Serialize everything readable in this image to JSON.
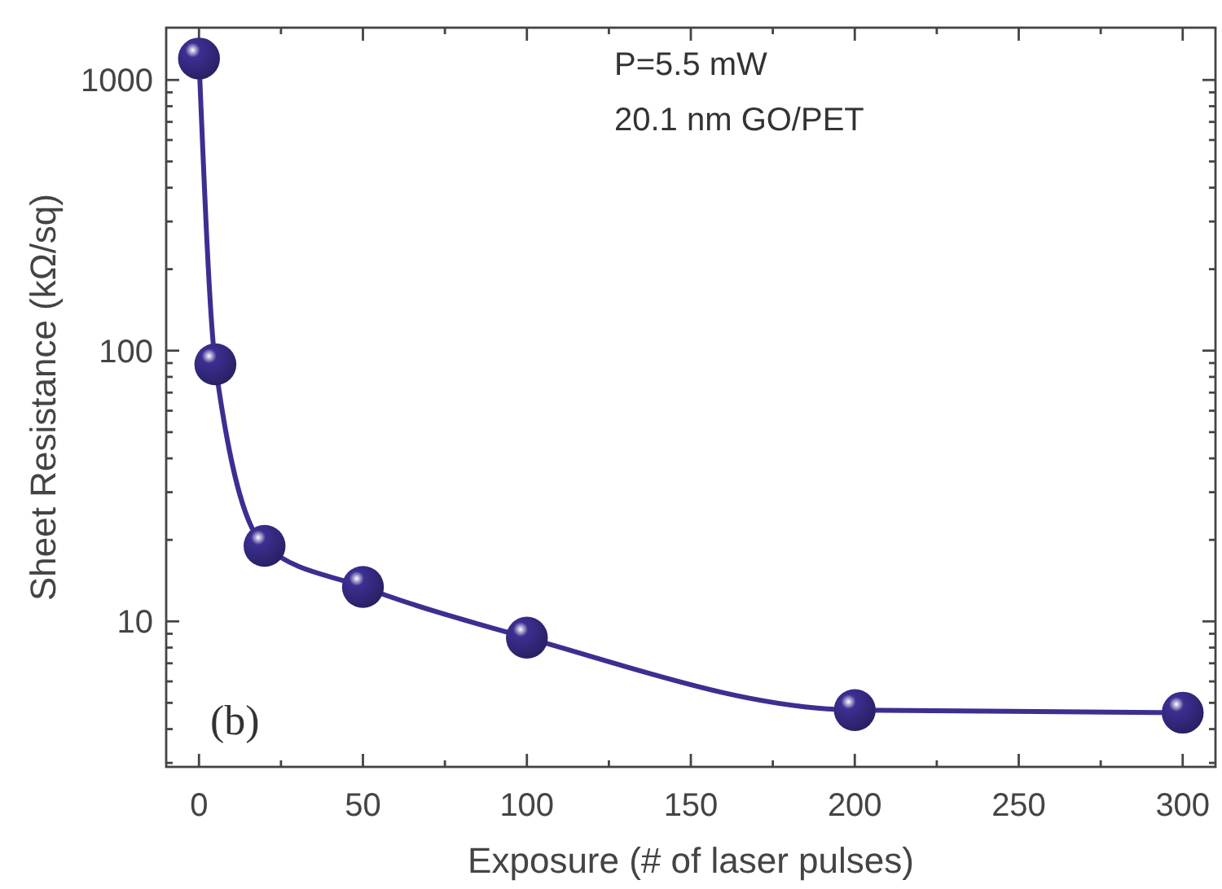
{
  "chart_data": {
    "type": "line",
    "xlabel": "Exposure (# of laser pulses)",
    "ylabel": "Sheet Resistance (kΩ/sq)",
    "x": [
      0,
      5,
      20,
      50,
      100,
      200,
      300
    ],
    "series": [
      {
        "color": "#3b2f91",
        "values": [
          1200,
          89,
          19,
          13.4,
          8.7,
          4.7,
          4.6
        ]
      }
    ],
    "log": "y",
    "marker": "circle",
    "line_style": "solid",
    "grid": false,
    "xlim": [
      -10,
      310
    ],
    "xticks": [
      0,
      {
        "value": 25,
        "label": null
      },
      50,
      {
        "value": 75,
        "label": null
      },
      100,
      {
        "value": 125,
        "label": null
      },
      150,
      {
        "value": 175,
        "label": null
      },
      200,
      {
        "value": 225,
        "label": null
      },
      250,
      {
        "value": 275,
        "label": null
      },
      300
    ],
    "ylim": [
      2.9,
      1560
    ],
    "yticks": [
      {
        "value": 3,
        "label": null
      },
      {
        "value": 4,
        "label": null
      },
      {
        "value": 5,
        "label": null
      },
      {
        "value": 6,
        "label": null
      },
      {
        "value": 7,
        "label": null
      },
      {
        "value": 8,
        "label": null
      },
      {
        "value": 9,
        "label": null
      },
      10,
      {
        "value": 20,
        "label": null
      },
      {
        "value": 30,
        "label": null
      },
      {
        "value": 40,
        "label": null
      },
      {
        "value": 50,
        "label": null
      },
      {
        "value": 60,
        "label": null
      },
      {
        "value": 70,
        "label": null
      },
      {
        "value": 80,
        "label": null
      },
      {
        "value": 90,
        "label": null
      },
      100,
      {
        "value": 200,
        "label": null
      },
      {
        "value": 300,
        "label": null
      },
      {
        "value": 400,
        "label": null
      },
      {
        "value": 500,
        "label": null
      },
      {
        "value": 600,
        "label": null
      },
      {
        "value": 700,
        "label": null
      },
      {
        "value": 800,
        "label": null
      },
      {
        "value": 900,
        "label": null
      },
      1000
    ],
    "annotations": [
      "P=5.5 mW",
      "20.1 nm GO/PET",
      "(b)"
    ]
  }
}
